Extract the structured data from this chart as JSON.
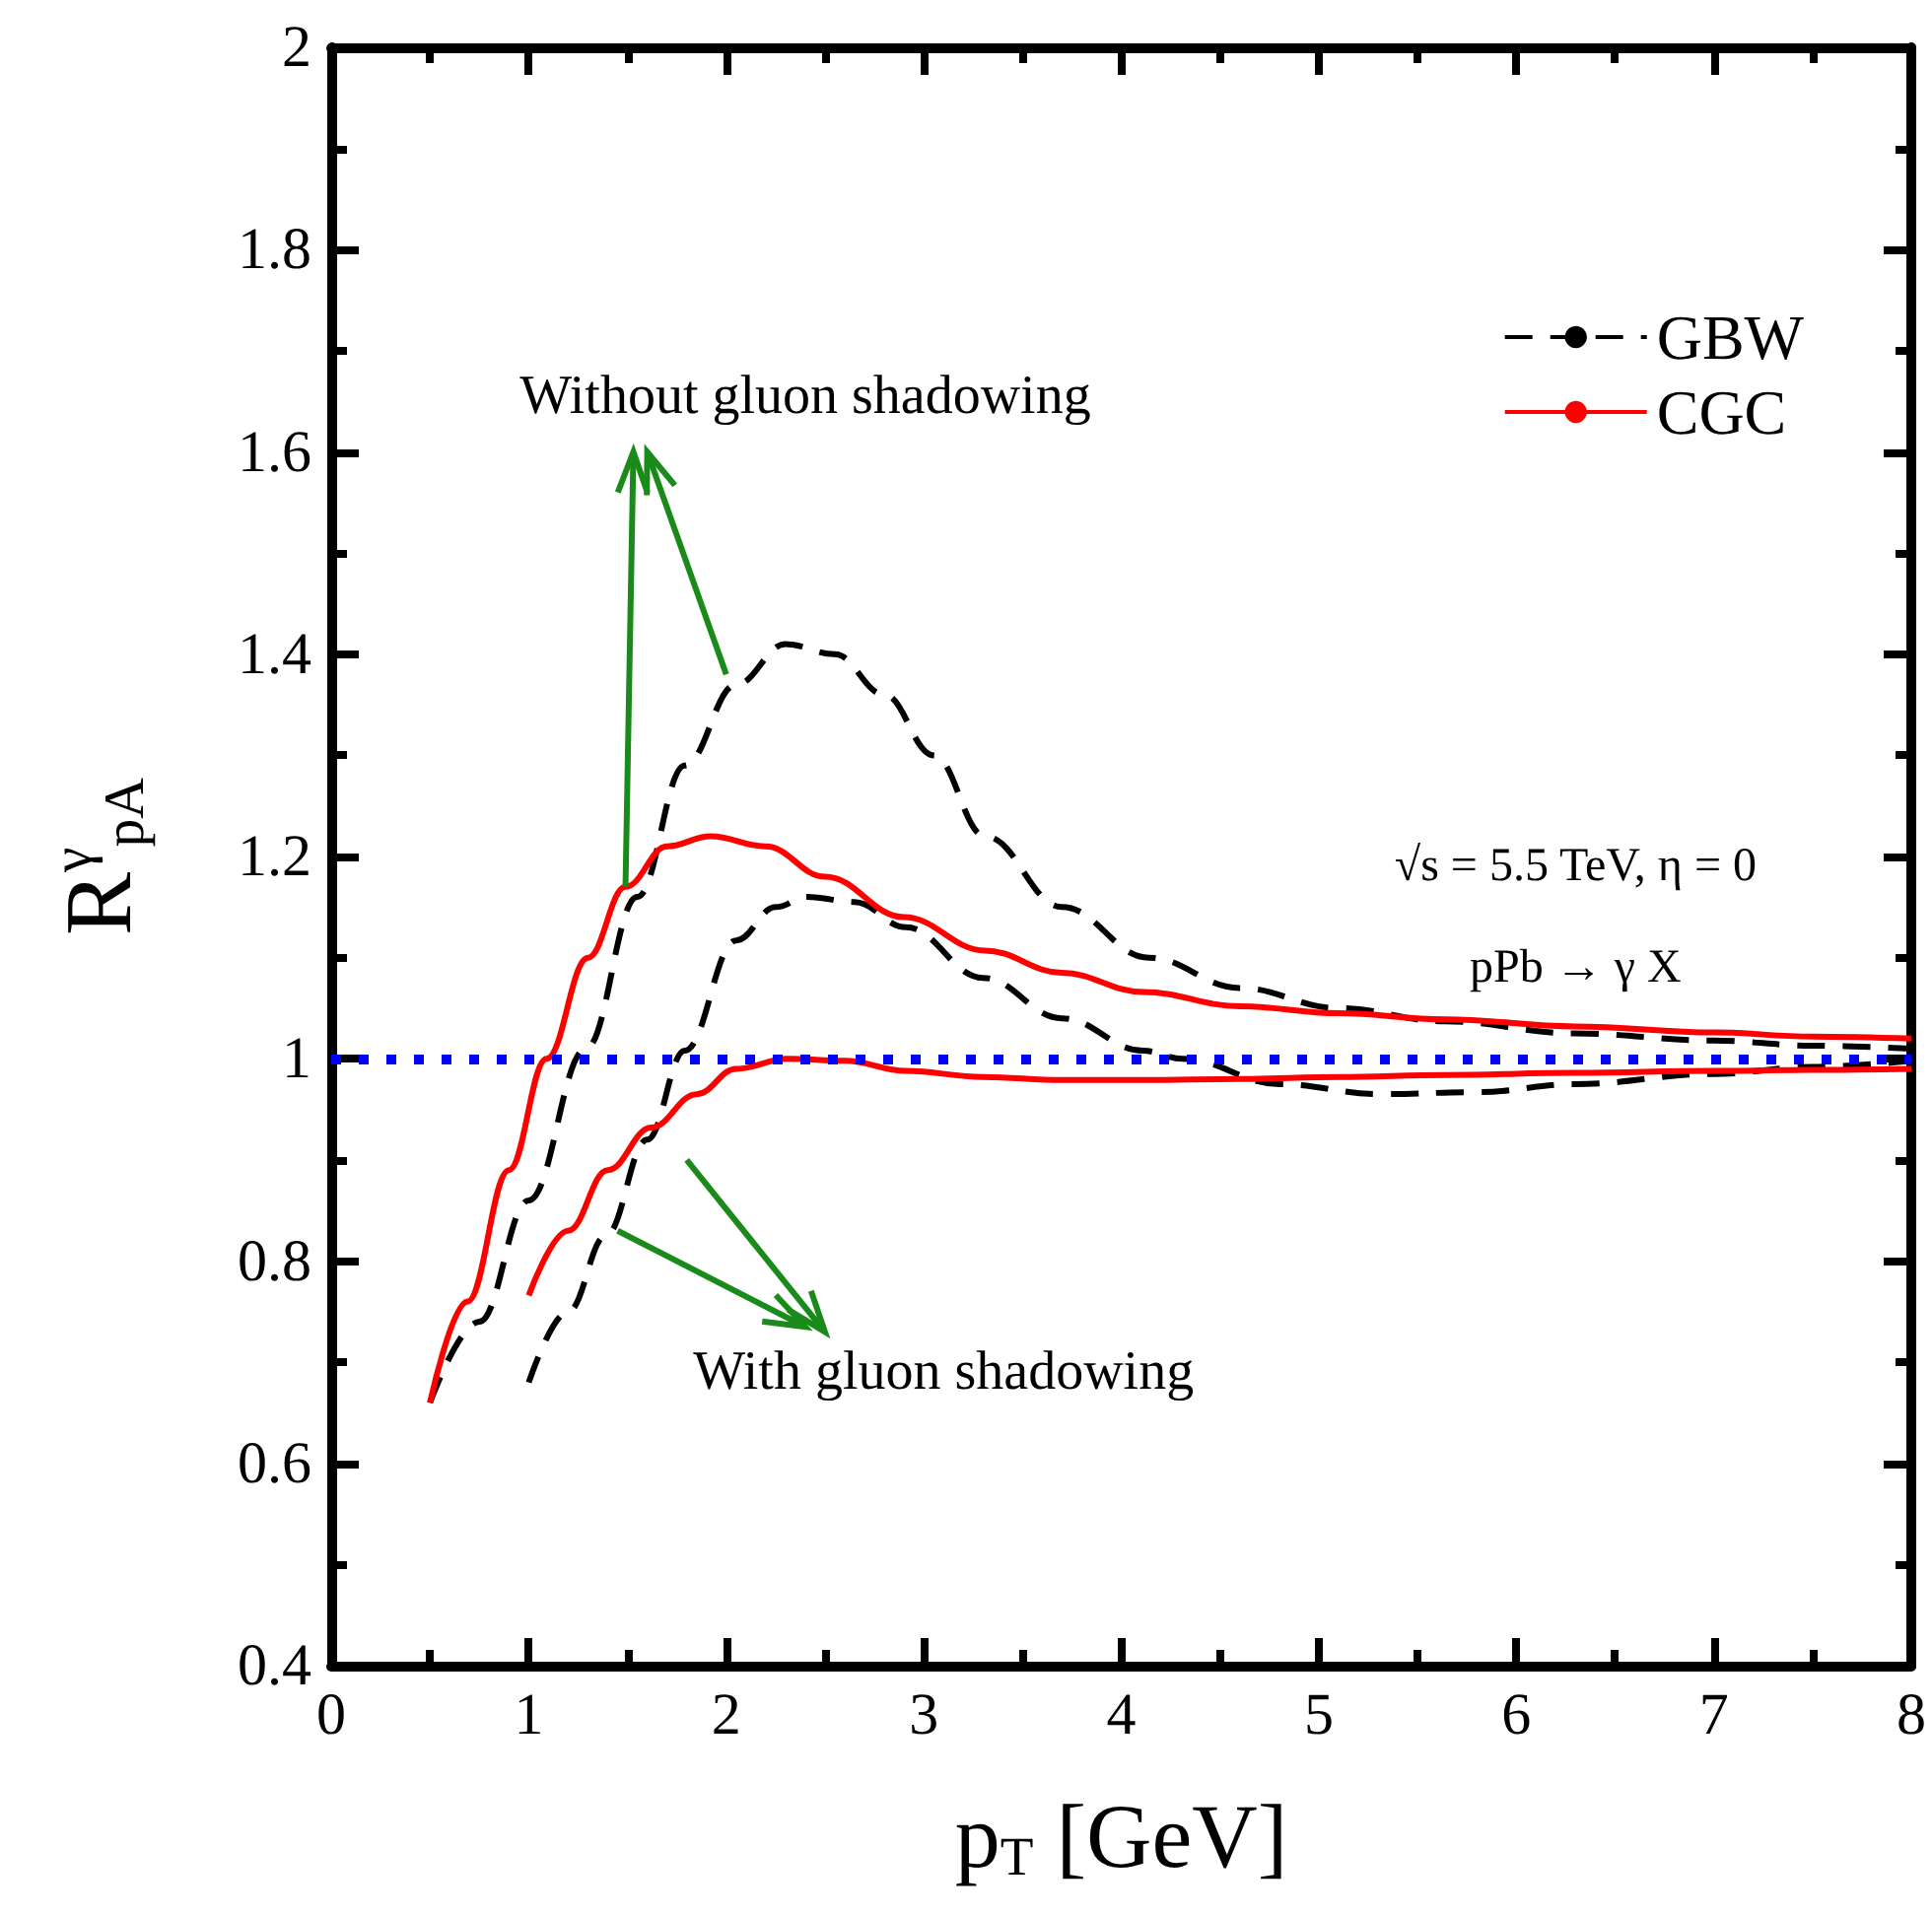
{
  "chart_data": {
    "type": "line",
    "xlabel": "p$_{T}$ [GeV]",
    "ylabel": "R$^{γ}$$_{pA}$",
    "xlim": [
      0,
      8
    ],
    "xticks": [
      0,
      1,
      2,
      3,
      4,
      5,
      6,
      7,
      8
    ],
    "ylim": [
      0.4,
      2
    ],
    "yticks": [
      0.4,
      0.6,
      0.8,
      1,
      1.2,
      1.4,
      1.6,
      1.8,
      2
    ],
    "grid": false,
    "legend": "top right",
    "marker": "none",
    "series": [
      {
        "name": "GBW",
        "color": "#000000",
        "line_style": "dashed",
        "x": [
          0.5,
          0.75,
          1.0,
          1.29,
          1.55,
          1.79,
          2.05,
          2.3,
          2.55,
          2.8,
          3.05,
          3.31,
          3.7,
          4.14,
          4.6,
          5.1,
          5.64,
          6.3,
          7.0,
          7.5,
          8.0
        ],
        "values": [
          0.66,
          0.74,
          0.86,
          1.01,
          1.16,
          1.29,
          1.37,
          1.41,
          1.4,
          1.36,
          1.3,
          1.22,
          1.15,
          1.1,
          1.07,
          1.05,
          1.037,
          1.025,
          1.018,
          1.013,
          1.01
        ]
      },
      {
        "color": "#000000",
        "line_style": "dashed",
        "x": [
          1.0,
          1.2,
          1.39,
          1.6,
          1.79,
          2.05,
          2.25,
          2.41,
          2.65,
          2.91,
          3.3,
          3.7,
          4.11,
          4.31,
          4.8,
          5.31,
          5.8,
          6.3,
          7.0,
          7.5,
          8.0
        ],
        "values": [
          0.68,
          0.75,
          0.825,
          0.92,
          1.008,
          1.117,
          1.15,
          1.16,
          1.155,
          1.13,
          1.08,
          1.04,
          1.008,
          1.0,
          0.975,
          0.965,
          0.967,
          0.975,
          0.985,
          0.992,
          0.998
        ]
      },
      {
        "name": "CGC",
        "color": "#ff0000",
        "line_style": "solid",
        "x": [
          0.5,
          0.69,
          0.9,
          1.09,
          1.3,
          1.49,
          1.7,
          1.92,
          2.2,
          2.5,
          2.9,
          3.31,
          3.7,
          4.11,
          4.6,
          5.1,
          5.64,
          6.3,
          7.0,
          7.5,
          8.0
        ],
        "values": [
          0.66,
          0.76,
          0.89,
          1.0,
          1.1,
          1.17,
          1.21,
          1.22,
          1.21,
          1.18,
          1.14,
          1.107,
          1.085,
          1.066,
          1.052,
          1.045,
          1.039,
          1.032,
          1.026,
          1.022,
          1.02
        ]
      },
      {
        "color": "#ff0000",
        "line_style": "solid",
        "x": [
          1.0,
          1.2,
          1.4,
          1.62,
          1.85,
          2.05,
          2.31,
          2.6,
          2.91,
          3.3,
          3.7,
          4.11,
          4.6,
          5.1,
          5.64,
          6.3,
          7.0,
          7.5,
          8.0
        ],
        "values": [
          0.766,
          0.83,
          0.89,
          0.932,
          0.965,
          0.99,
          1.0,
          0.998,
          0.988,
          0.982,
          0.979,
          0.979,
          0.98,
          0.982,
          0.984,
          0.986,
          0.988,
          0.989,
          0.99
        ]
      }
    ],
    "ref_lines": [
      {
        "axis": "y",
        "value": 1,
        "color": "#0000ff",
        "line_style": "dotted"
      }
    ],
    "annotations": [
      {
        "text": "Without gluon shadowing",
        "x": 1.49,
        "y": 1.17
      },
      {
        "text": "With gluon shadowing",
        "x": 1.45,
        "y": 0.83
      },
      "√s = 5.5 TeV, η = 0",
      "pPb → γ X"
    ]
  }
}
